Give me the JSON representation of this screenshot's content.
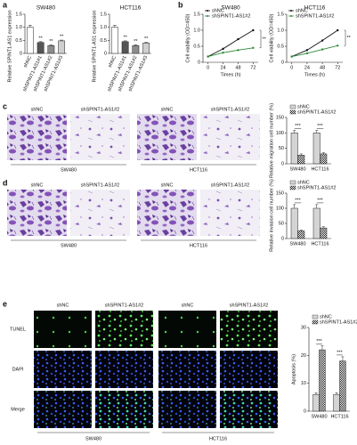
{
  "panels": [
    {
      "label": "a"
    },
    {
      "label": "b"
    },
    {
      "label": "c",
      "columns": [
        "shNC",
        "shSPINT1-AS1#2",
        "shNC",
        "shSPINT1-AS1#2"
      ],
      "groups": [
        "SW480",
        "HCT116"
      ]
    },
    {
      "label": "d",
      "columns": [
        "shNC",
        "shSPINT1-AS1#2",
        "shNC",
        "shSPINT1-AS1#2"
      ],
      "groups": [
        "SW480",
        "HCT116"
      ]
    },
    {
      "label": "e",
      "columns": [
        "shNC",
        "shSPINT1-AS1#2",
        "shNC",
        "shSPINT1-AS1#2"
      ],
      "rows": [
        "TUNEL",
        "DAPI",
        "Merge"
      ],
      "groups": [
        "SW480",
        "HCT116"
      ]
    }
  ],
  "chart_data": [
    {
      "type": "bar",
      "title": "SW480",
      "y_label": "Relative SPINT1-AS1 expression",
      "categories": [
        "shNC",
        "shSPINT1-AS1#1",
        "shSPINT1-AS1#2",
        "shSPINT1-AS1#3"
      ],
      "values": [
        1.0,
        0.42,
        0.3,
        0.48
      ],
      "errors": [
        0.08,
        0.03,
        0.03,
        0.03
      ],
      "colors": [
        "#ffffff",
        "#555555",
        "#8c8c8c",
        "#cfcfcf"
      ],
      "annotations": [
        null,
        "**",
        "**",
        "**"
      ],
      "ylim": [
        0,
        1.5
      ],
      "yticks": [
        0,
        0.5,
        {
          "value": 1,
          "label": "1.0"
        },
        1.5
      ]
    },
    {
      "type": "bar",
      "title": "HCT116",
      "y_label": "Relative SPINT1-AS1 expression",
      "categories": [
        "shNC",
        "shSPINT1-AS1#1",
        "shSPINT1-AS1#2",
        "shSPINT1-AS1#3"
      ],
      "values": [
        1.0,
        0.45,
        0.3,
        0.4
      ],
      "errors": [
        0.08,
        0.03,
        0.03,
        0.03
      ],
      "colors": [
        "#ffffff",
        "#555555",
        "#8c8c8c",
        "#cfcfcf"
      ],
      "annotations": [
        null,
        "**",
        "**",
        "**"
      ],
      "ylim": [
        0,
        1.5
      ],
      "yticks": [
        0,
        0.5,
        {
          "value": 1,
          "label": "1.0"
        },
        1.5
      ]
    },
    {
      "type": "line",
      "title": "SW480",
      "y_label": "Cell viability (OD=450)",
      "x_label": "Times (h)",
      "x": [
        0,
        24,
        48,
        72
      ],
      "xlim": [
        -8,
        80
      ],
      "xticks": [
        0,
        24,
        48,
        72
      ],
      "ylim": [
        0,
        1.5
      ],
      "yticks": [
        0,
        0.5,
        {
          "value": 1,
          "label": "1.0"
        },
        1.5
      ],
      "series": [
        {
          "name": "shNC",
          "color": "#111111",
          "values": [
            0.18,
            0.42,
            0.72,
            1.0
          ]
        },
        {
          "name": "shSPINT1-AS1#2",
          "color": "#2e8b3a",
          "values": [
            0.18,
            0.3,
            0.38,
            0.45
          ]
        }
      ],
      "annotation": "**"
    },
    {
      "type": "line",
      "title": "HCT116",
      "y_label": "Cell viability (OD=450)",
      "x_label": "Times (h)",
      "x": [
        0,
        24,
        48,
        72
      ],
      "xlim": [
        -8,
        80
      ],
      "xticks": [
        0,
        24,
        48,
        72
      ],
      "ylim": [
        0,
        1.5
      ],
      "yticks": [
        0,
        0.5,
        {
          "value": 1,
          "label": "1.0"
        },
        1.5
      ],
      "series": [
        {
          "name": "shNC",
          "color": "#111111",
          "values": [
            0.18,
            0.38,
            0.68,
            1.0
          ]
        },
        {
          "name": "shSPINT1-AS1#2",
          "color": "#2e8b3a",
          "values": [
            0.18,
            0.28,
            0.4,
            0.52
          ]
        }
      ],
      "annotation": "**"
    },
    {
      "type": "grouped_bar",
      "y_label": "Relative migration cell number (%)",
      "categories": [
        "SW480",
        "HCT116"
      ],
      "ylim": [
        0,
        150
      ],
      "yticks": [
        0,
        50,
        100,
        150
      ],
      "legend": "top",
      "series": [
        {
          "name": "shNC",
          "color": "#d4d4d4",
          "values": [
            100,
            100
          ],
          "errors": [
            8,
            8
          ]
        },
        {
          "name": "shSPINT1-AS1#2",
          "color": "#333333",
          "pattern": "checker",
          "values": [
            28,
            32
          ],
          "errors": [
            4,
            4
          ]
        }
      ],
      "annotations": [
        "***",
        "***"
      ]
    },
    {
      "type": "grouped_bar",
      "y_label": "Relative invasion cell number (%)",
      "categories": [
        "SW480",
        "HCT116"
      ],
      "ylim": [
        0,
        150
      ],
      "yticks": [
        0,
        50,
        100,
        150
      ],
      "legend": "top",
      "series": [
        {
          "name": "shNC",
          "color": "#d4d4d4",
          "values": [
            100,
            100
          ],
          "errors": [
            12,
            12
          ]
        },
        {
          "name": "shSPINT1-AS1#2",
          "color": "#333333",
          "pattern": "checker",
          "values": [
            25,
            35
          ],
          "errors": [
            3,
            4
          ]
        }
      ],
      "annotations": [
        "***",
        "***"
      ]
    },
    {
      "type": "grouped_bar",
      "y_label": "Apoptosis (%)",
      "categories": [
        "SW480",
        "HCT116"
      ],
      "ylim": [
        0,
        30
      ],
      "yticks": [
        0,
        10,
        20,
        30
      ],
      "legend": "top",
      "series": [
        {
          "name": "shNC",
          "color": "#d4d4d4",
          "values": [
            6,
            6
          ],
          "errors": [
            0.6,
            0.6
          ]
        },
        {
          "name": "shSPINT1-AS1#2",
          "color": "#333333",
          "pattern": "checker",
          "values": [
            22,
            18
          ],
          "errors": [
            1.5,
            1.5
          ]
        }
      ],
      "annotations": [
        "***",
        "***"
      ]
    }
  ]
}
